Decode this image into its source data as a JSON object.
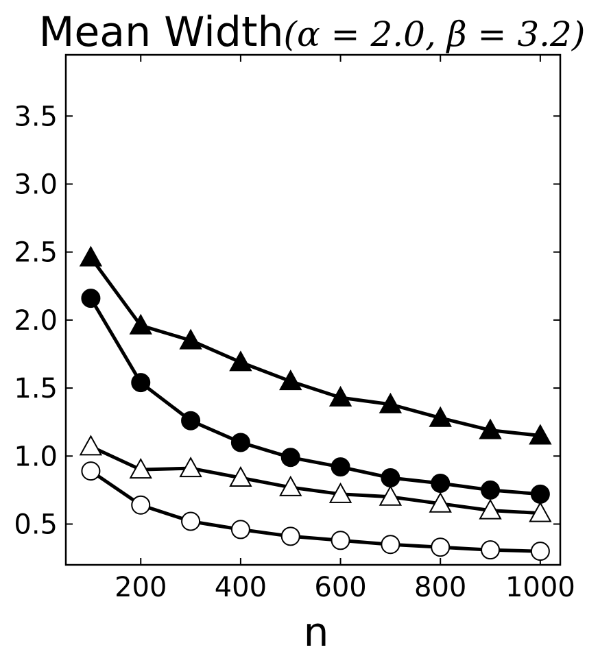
{
  "chart_data": {
    "type": "line",
    "title": "Mean Width",
    "title_params": "(α = 2.0, β = 3.2)",
    "xlabel": "n",
    "ylabel": "",
    "xlim": [
      50,
      1040
    ],
    "ylim": [
      0.2,
      3.95
    ],
    "xticks": [
      200,
      400,
      600,
      800,
      1000
    ],
    "xtick_labels": [
      "200",
      "400",
      "600",
      "800",
      "1000"
    ],
    "yticks": [
      0.5,
      1.0,
      1.5,
      2.0,
      2.5,
      3.0,
      3.5
    ],
    "ytick_labels": [
      "0.5",
      "1.0",
      "1.5",
      "2.0",
      "2.5",
      "3.0",
      "3.5"
    ],
    "grid": false,
    "x": [
      100,
      200,
      300,
      400,
      500,
      600,
      700,
      800,
      900,
      1000
    ],
    "series": [
      {
        "marker": "triangle",
        "fill": "#000000",
        "values": [
          2.46,
          1.96,
          1.85,
          1.69,
          1.55,
          1.43,
          1.38,
          1.28,
          1.19,
          1.15
        ]
      },
      {
        "marker": "circle",
        "fill": "#000000",
        "values": [
          2.16,
          1.54,
          1.26,
          1.1,
          0.99,
          0.92,
          0.84,
          0.8,
          0.75,
          0.72
        ]
      },
      {
        "marker": "triangle",
        "fill": "#ffffff",
        "values": [
          1.07,
          0.9,
          0.91,
          0.84,
          0.77,
          0.72,
          0.7,
          0.65,
          0.6,
          0.58
        ]
      },
      {
        "marker": "circle",
        "fill": "#ffffff",
        "values": [
          0.89,
          0.64,
          0.52,
          0.46,
          0.41,
          0.38,
          0.35,
          0.33,
          0.31,
          0.3
        ]
      }
    ]
  }
}
